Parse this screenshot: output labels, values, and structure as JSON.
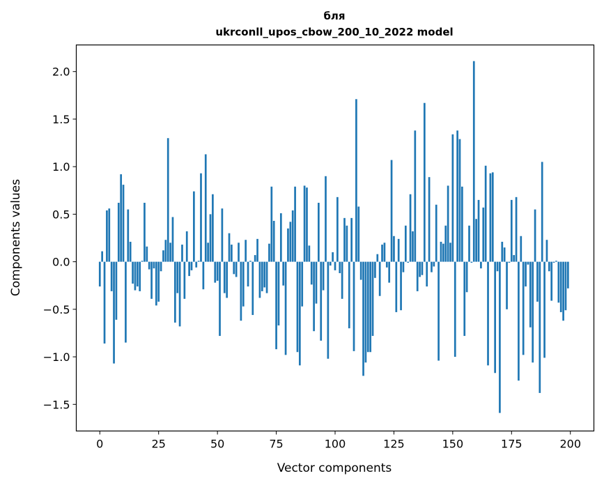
{
  "chart_data": {
    "type": "bar",
    "title": [
      "бля",
      "ukrconll_upos_cbow_200_10_2022 model"
    ],
    "xlabel": "Vector components",
    "ylabel": "Components values",
    "xlim": [
      -10,
      210
    ],
    "ylim": [
      -1.78,
      2.28
    ],
    "xticks": [
      0,
      25,
      50,
      75,
      100,
      125,
      150,
      175,
      200
    ],
    "yticks": [
      -1.5,
      -1.0,
      -0.5,
      0.0,
      0.5,
      1.0,
      1.5,
      2.0
    ],
    "xtick_labels": [
      "0",
      "25",
      "50",
      "75",
      "100",
      "125",
      "150",
      "175",
      "200"
    ],
    "ytick_labels": [
      "−1.5",
      "−1.0",
      "−0.5",
      "0.0",
      "0.5",
      "1.0",
      "1.5",
      "2.0"
    ],
    "grid": false,
    "bar_color": "#1f77b4",
    "values": [
      -0.26,
      0.11,
      -0.86,
      0.54,
      0.56,
      -0.31,
      -1.07,
      -0.61,
      0.62,
      0.92,
      0.81,
      -0.85,
      0.55,
      0.21,
      -0.23,
      -0.3,
      -0.26,
      -0.31,
      0.01,
      0.62,
      0.16,
      -0.08,
      -0.39,
      -0.07,
      -0.46,
      -0.42,
      -0.1,
      0.12,
      0.23,
      1.3,
      0.2,
      0.47,
      -0.64,
      -0.33,
      -0.68,
      0.18,
      -0.39,
      0.32,
      -0.15,
      -0.09,
      0.74,
      -0.06,
      0.01,
      0.93,
      -0.29,
      1.13,
      0.2,
      0.5,
      0.71,
      -0.22,
      -0.2,
      -0.78,
      0.56,
      -0.33,
      -0.38,
      0.3,
      0.18,
      -0.13,
      -0.16,
      0.2,
      -0.62,
      -0.47,
      0.23,
      -0.26,
      0.01,
      -0.56,
      0.07,
      0.24,
      -0.38,
      -0.31,
      -0.27,
      -0.33,
      0.19,
      0.79,
      0.43,
      -0.92,
      -0.67,
      0.51,
      -0.25,
      -0.98,
      0.35,
      0.42,
      0.54,
      0.79,
      -0.95,
      -1.09,
      -0.47,
      0.8,
      0.78,
      0.17,
      -0.24,
      -0.73,
      -0.44,
      0.62,
      -0.83,
      -0.3,
      0.9,
      -1.02,
      -0.04,
      0.1,
      -0.09,
      0.68,
      -0.12,
      -0.39,
      0.46,
      0.38,
      -0.7,
      0.46,
      -0.94,
      1.71,
      0.58,
      -0.19,
      -1.2,
      -1.06,
      -0.95,
      -0.95,
      -0.78,
      -0.17,
      0.08,
      -0.36,
      0.18,
      0.2,
      -0.06,
      -0.22,
      1.07,
      0.27,
      -0.53,
      0.24,
      -0.51,
      -0.11,
      0.38,
      -0.01,
      0.71,
      0.32,
      1.38,
      -0.31,
      -0.16,
      -0.14,
      1.67,
      -0.26,
      0.89,
      -0.11,
      -0.05,
      0.6,
      -1.04,
      0.21,
      0.19,
      0.38,
      0.8,
      0.2,
      1.34,
      -1.0,
      1.38,
      1.29,
      0.79,
      -0.78,
      -0.32,
      0.38,
      -0.01,
      2.11,
      0.45,
      0.65,
      -0.07,
      0.57,
      1.01,
      -1.09,
      0.93,
      0.94,
      -1.17,
      -0.1,
      -1.59,
      0.21,
      0.15,
      -0.5,
      -0.01,
      0.65,
      0.07,
      0.68,
      -1.25,
      0.27,
      -0.98,
      -0.26,
      -0.03,
      -0.69,
      -1.06,
      0.55,
      -0.42,
      -1.38,
      1.05,
      -1.01,
      0.23,
      -0.1,
      -0.41,
      -0.01,
      0.01,
      -0.43,
      -0.53,
      -0.62,
      -0.51,
      -0.28
    ]
  }
}
